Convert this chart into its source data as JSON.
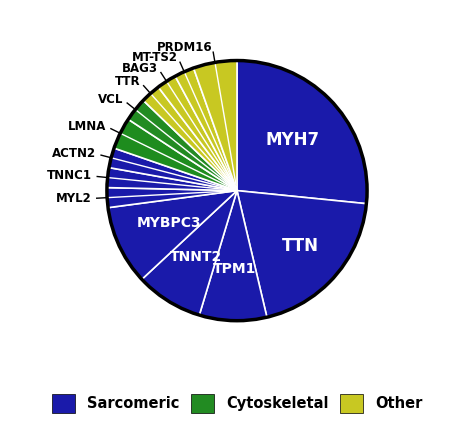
{
  "slices": [
    {
      "label": "MYH7",
      "value": 27.0,
      "color": "#1a1aaa",
      "category": "Sarcomeric"
    },
    {
      "label": "TTN",
      "value": 20.0,
      "color": "#1a1aaa",
      "category": "Sarcomeric"
    },
    {
      "label": "TPM1",
      "value": 8.5,
      "color": "#1a1aaa",
      "category": "Sarcomeric"
    },
    {
      "label": "TNNT2",
      "value": 8.5,
      "color": "#1a1aaa",
      "category": "Sarcomeric"
    },
    {
      "label": "MYBPC3",
      "value": 10.0,
      "color": "#1a1aaa",
      "category": "Sarcomeric"
    },
    {
      "label": "MYL2",
      "value": 2.5,
      "color": "#1a1aaa",
      "category": "Sarcomeric"
    },
    {
      "label": "TNNC1",
      "value": 2.5,
      "color": "#1a1aaa",
      "category": "Sarcomeric"
    },
    {
      "label": "ACTN2",
      "value": 2.5,
      "color": "#1a1aaa",
      "category": "Sarcomeric"
    },
    {
      "label": "LMNA",
      "value": 4.0,
      "color": "#1e8c1e",
      "category": "Cytoskeletal"
    },
    {
      "label": "VCL",
      "value": 3.0,
      "color": "#228B22",
      "category": "Cytoskeletal"
    },
    {
      "label": "TTR",
      "value": 2.5,
      "color": "#c8c822",
      "category": "Other"
    },
    {
      "label": "BAG3",
      "value": 2.5,
      "color": "#c8c822",
      "category": "Other"
    },
    {
      "label": "MT-TS2",
      "value": 2.5,
      "color": "#c8c822",
      "category": "Other"
    },
    {
      "label": "PRDM16",
      "value": 5.5,
      "color": "#c8c822",
      "category": "Other"
    }
  ],
  "legend": [
    {
      "label": "Sarcomeric",
      "color": "#1a1aaa"
    },
    {
      "label": "Cytoskeletal",
      "color": "#228B22"
    },
    {
      "label": "Other",
      "color": "#c8c822"
    }
  ],
  "background_color": "#ffffff",
  "wedge_edge_color": "white",
  "wedge_linewidth": 1.2,
  "pie_border_color": "black",
  "pie_border_linewidth": 2.5,
  "internal_labels": [
    "MYH7",
    "TTN",
    "TPM1",
    "TNNT2",
    "MYBPC3"
  ],
  "external_labels": [
    "MYL2",
    "TNNC1",
    "ACTN2",
    "LMNA",
    "VCL",
    "TTR",
    "BAG3",
    "MT-TS2",
    "PRDM16"
  ],
  "label_positions": {
    "MYH7": {
      "r": 0.58,
      "fontsize": 12
    },
    "TTN": {
      "r": 0.65,
      "fontsize": 12
    },
    "TPM1": {
      "r": 0.6,
      "fontsize": 10
    },
    "TNNT2": {
      "r": 0.6,
      "fontsize": 10
    },
    "MYBPC3": {
      "r": 0.58,
      "fontsize": 10
    }
  }
}
